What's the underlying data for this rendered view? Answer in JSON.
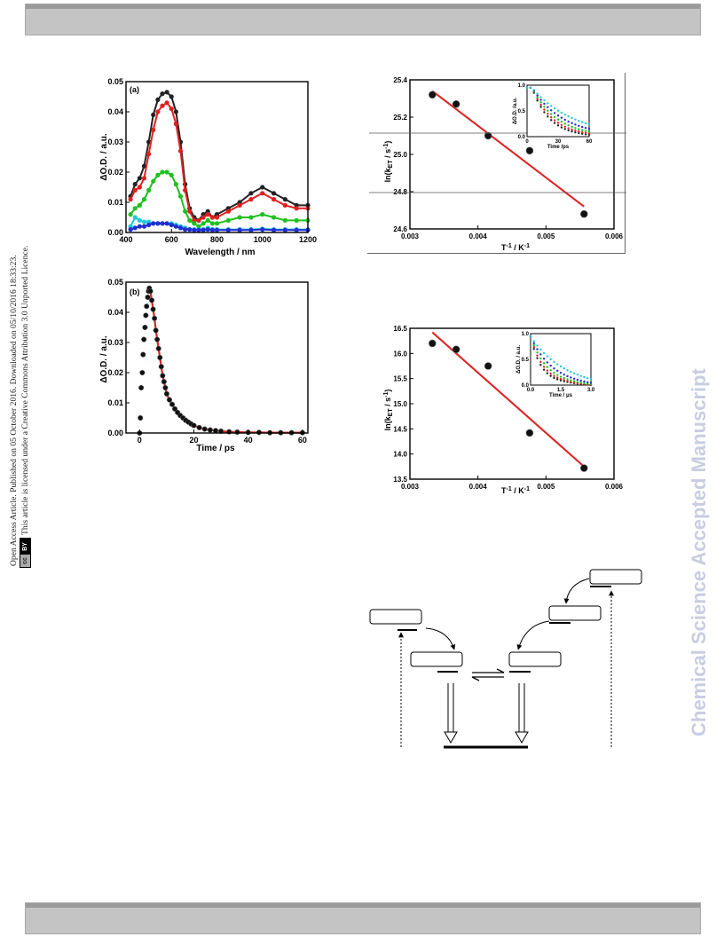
{
  "header_bar": {},
  "footer_bar": {},
  "side_notice": {
    "line1": "Open Access Article. Published on 05 October 2016. Downloaded on 05/10/2016 18:33:23.",
    "line2": "This article is licensed under a Creative Commons Attribution 3.0 Unported Licence.",
    "badge_cc": "cc",
    "badge_by": "BY"
  },
  "watermark": "Chemical Science Accepted Manuscript",
  "chart_data": [
    {
      "panel": "(a)",
      "type": "line",
      "xlabel": "Wavelength / nm",
      "ylabel": "ΔO.D. / a.u.",
      "xlim": [
        400,
        1200
      ],
      "ylim": [
        0,
        0.05
      ],
      "xticks": [
        "400",
        "600",
        "800",
        "1000",
        "1200"
      ],
      "yticks": [
        "0.00",
        "0.01",
        "0.02",
        "0.03",
        "0.04",
        "0.05"
      ],
      "series": [
        {
          "color": "#222222",
          "x": [
            420,
            440,
            460,
            480,
            500,
            520,
            540,
            560,
            580,
            600,
            620,
            640,
            660,
            680,
            700,
            720,
            740,
            760,
            780,
            800,
            850,
            900,
            950,
            1000,
            1050,
            1100,
            1150,
            1200
          ],
          "y": [
            0.012,
            0.016,
            0.018,
            0.022,
            0.03,
            0.039,
            0.044,
            0.046,
            0.0465,
            0.045,
            0.04,
            0.03,
            0.016,
            0.008,
            0.005,
            0.004,
            0.006,
            0.007,
            0.005,
            0.006,
            0.008,
            0.01,
            0.013,
            0.015,
            0.013,
            0.011,
            0.009,
            0.009
          ]
        },
        {
          "color": "#e02020",
          "x": [
            420,
            440,
            460,
            480,
            500,
            520,
            540,
            560,
            580,
            600,
            620,
            640,
            660,
            680,
            700,
            720,
            740,
            760,
            780,
            800,
            850,
            900,
            950,
            1000,
            1050,
            1100,
            1150,
            1200
          ],
          "y": [
            0.011,
            0.014,
            0.015,
            0.018,
            0.026,
            0.034,
            0.04,
            0.042,
            0.043,
            0.041,
            0.036,
            0.027,
            0.014,
            0.007,
            0.004,
            0.004,
            0.005,
            0.006,
            0.005,
            0.005,
            0.007,
            0.009,
            0.011,
            0.013,
            0.011,
            0.009,
            0.008,
            0.008
          ]
        },
        {
          "color": "#20c020",
          "x": [
            420,
            440,
            460,
            480,
            500,
            520,
            540,
            560,
            580,
            600,
            620,
            640,
            660,
            680,
            700,
            720,
            740,
            760,
            780,
            800,
            850,
            900,
            950,
            1000,
            1050,
            1100,
            1150,
            1200
          ],
          "y": [
            0.006,
            0.008,
            0.009,
            0.011,
            0.014,
            0.017,
            0.019,
            0.02,
            0.02,
            0.019,
            0.016,
            0.012,
            0.007,
            0.004,
            0.003,
            0.002,
            0.003,
            0.004,
            0.003,
            0.003,
            0.004,
            0.005,
            0.005,
            0.006,
            0.005,
            0.004,
            0.004,
            0.004
          ]
        },
        {
          "color": "#20c8d8",
          "x": [
            420,
            440,
            460,
            480,
            500,
            520,
            540,
            560,
            580,
            600,
            620,
            640,
            660,
            680,
            700,
            720,
            740,
            760,
            780,
            800,
            850,
            900,
            950,
            1000,
            1050,
            1100,
            1150,
            1200
          ],
          "y": [
            0.002,
            0.005,
            0.004,
            0.0035,
            0.0035,
            0.003,
            0.003,
            0.003,
            0.003,
            0.003,
            0.0025,
            0.002,
            0.0015,
            0.001,
            0.001,
            0.001,
            0.001,
            0.0015,
            0.001,
            0.001,
            0.001,
            0.001,
            0.001,
            0.0012,
            0.001,
            0.001,
            0.001,
            0.001
          ]
        },
        {
          "color": "#2030d0",
          "x": [
            420,
            440,
            460,
            480,
            500,
            520,
            540,
            560,
            580,
            600,
            620,
            640,
            660,
            680,
            700,
            720,
            740,
            760,
            780,
            800,
            850,
            900,
            950,
            1000,
            1050,
            1100,
            1150,
            1200
          ],
          "y": [
            0.001,
            0.0015,
            0.002,
            0.002,
            0.0025,
            0.003,
            0.003,
            0.003,
            0.003,
            0.0025,
            0.002,
            0.0015,
            0.001,
            0.001,
            0.0008,
            0.0008,
            0.0008,
            0.001,
            0.0008,
            0.0008,
            0.0008,
            0.0008,
            0.0008,
            0.001,
            0.0008,
            0.0008,
            0.0008,
            0.0008
          ]
        }
      ]
    },
    {
      "panel": "(b)",
      "type": "scatter",
      "xlabel": "Time / ps",
      "ylabel": "ΔO.D. / a.u.",
      "xlim": [
        -5,
        62
      ],
      "ylim": [
        0,
        0.05
      ],
      "xticks": [
        "0",
        "20",
        "40",
        "60"
      ],
      "yticks": [
        "0.00",
        "0.01",
        "0.02",
        "0.03",
        "0.04",
        "0.05"
      ],
      "points_x": [
        0,
        0.3,
        0.6,
        1.0,
        1.3,
        1.6,
        2.0,
        2.3,
        2.6,
        3.0,
        3.3,
        3.6,
        4.0,
        4.5,
        5,
        5.5,
        6,
        6.5,
        7,
        7.5,
        8,
        8.5,
        9,
        9.5,
        10,
        11,
        12,
        13,
        14,
        15,
        16,
        17,
        18,
        19,
        20,
        22,
        24,
        26,
        28,
        30,
        33,
        36,
        40,
        44,
        48,
        52,
        56,
        60
      ],
      "points_y": [
        0.0,
        0.005,
        0.015,
        0.02,
        0.026,
        0.031,
        0.035,
        0.039,
        0.042,
        0.045,
        0.047,
        0.048,
        0.047,
        0.044,
        0.041,
        0.038,
        0.034,
        0.031,
        0.028,
        0.025,
        0.022,
        0.019,
        0.017,
        0.015,
        0.013,
        0.011,
        0.0095,
        0.008,
        0.0068,
        0.0058,
        0.005,
        0.0042,
        0.0036,
        0.003,
        0.0025,
        0.0018,
        0.0013,
        0.001,
        0.0008,
        0.0006,
        0.0004,
        0.0003,
        0.0002,
        0.0002,
        0.0001,
        0.0001,
        0.0001,
        0.0001
      ],
      "fit_color": "#e02020"
    },
    {
      "panel": "top-right",
      "type": "scatter",
      "xlabel": "T⁻¹ / K⁻¹",
      "ylabel": "ln(kET / s⁻¹)",
      "xlim": [
        0.003,
        0.006
      ],
      "ylim": [
        24.6,
        25.4
      ],
      "xticks": [
        "0.003",
        "0.004",
        "0.005",
        "0.006"
      ],
      "yticks": [
        "24.6",
        "24.8",
        "25.0",
        "25.2",
        "25.4"
      ],
      "points": [
        [
          0.00333,
          25.32
        ],
        [
          0.00368,
          25.27
        ],
        [
          0.00415,
          25.1
        ],
        [
          0.00476,
          25.02
        ],
        [
          0.00556,
          24.68
        ]
      ],
      "fit": [
        [
          0.00333,
          25.34
        ],
        [
          0.00556,
          24.72
        ]
      ],
      "inset": {
        "xlabel": "Time /ps",
        "ylabel": "ΔO.D. /a.u.",
        "xticks": [
          "0",
          "30",
          "60"
        ],
        "yticks": [
          "0.0",
          "0.5",
          "1.0"
        ]
      }
    },
    {
      "panel": "bottom-right",
      "type": "scatter",
      "xlabel": "T⁻¹ / K⁻¹",
      "ylabel": "ln(kET / s⁻¹)",
      "xlim": [
        0.003,
        0.006
      ],
      "ylim": [
        13.5,
        16.5
      ],
      "xticks": [
        "0.003",
        "0.004",
        "0.005",
        "0.006"
      ],
      "yticks": [
        "13.5",
        "14.0",
        "14.5",
        "15.0",
        "15.5",
        "16.0",
        "16.5"
      ],
      "points": [
        [
          0.00333,
          16.2
        ],
        [
          0.00368,
          16.08
        ],
        [
          0.00415,
          15.75
        ],
        [
          0.00476,
          14.42
        ],
        [
          0.00556,
          13.72
        ]
      ],
      "fit": [
        [
          0.00333,
          16.42
        ],
        [
          0.00556,
          13.75
        ]
      ],
      "inset": {
        "xlabel": "Time / μs",
        "ylabel": "ΔO.D. / a.u.",
        "xticks": [
          "0.0",
          "1.5",
          "3.0"
        ],
        "yticks": [
          "0.0",
          "0.5",
          "1.0"
        ]
      }
    }
  ]
}
